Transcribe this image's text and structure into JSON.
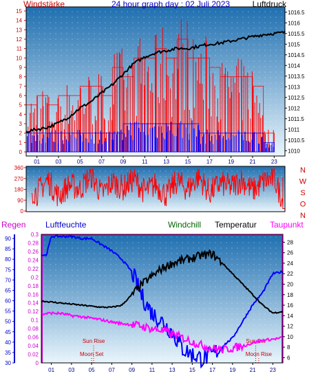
{
  "colors": {
    "wind": "#ff0000",
    "gust_bar": "#ff0000",
    "wind_bar": "#0000ff",
    "pressure": "#000000",
    "direction": "#ff0000",
    "rain": "#cc00cc",
    "humidity": "#0000ff",
    "windchill": "#006600",
    "temperature": "#000000",
    "dewpoint": "#ff00ff",
    "sun_label": "#cc0000",
    "moon_label": "#990000",
    "header_title": "#0000cc",
    "panel_top": "#1f72b4",
    "panel_bottom": "#e8f4fb"
  },
  "chart_data": [
    {
      "type": "bar+line",
      "title": "24 hour graph day : 02 Juli 2023",
      "left_label": "Windstärke",
      "right_label": "Luftdruck",
      "x_ticks": [
        "01",
        "03",
        "05",
        "07",
        "09",
        "11",
        "13",
        "15",
        "17",
        "19",
        "21",
        "23"
      ],
      "x_range": [
        0,
        24
      ],
      "y_left_ticks": [
        "0",
        "1",
        "2",
        "3",
        "4",
        "5",
        "6",
        "7",
        "8",
        "9",
        "10",
        "11",
        "12",
        "13",
        "14",
        "15"
      ],
      "y_left_range": [
        0,
        15
      ],
      "y_right_ticks": [
        "1010",
        "1010.5",
        "1011",
        "1011.5",
        "1012",
        "1012.5",
        "1013",
        "1013.5",
        "1014",
        "1014.5",
        "1015",
        "1015.5",
        "1016",
        "1016.5"
      ],
      "y_right_range": [
        1009.75,
        1016.75
      ],
      "pressure_series": {
        "x": [
          0.0,
          1.0,
          2.0,
          3.0,
          4.0,
          5.0,
          6.0,
          7.0,
          8.0,
          9.0,
          10.0,
          11.0,
          12.0,
          13.0,
          14.0,
          15.0,
          16.0,
          17.0,
          18.0,
          19.0,
          20.0,
          21.0,
          22.0,
          23.0,
          24.0
        ],
        "values": [
          1010.9,
          1011.0,
          1011.1,
          1011.3,
          1011.6,
          1012.0,
          1012.3,
          1012.7,
          1013.1,
          1013.6,
          1014.1,
          1014.4,
          1014.6,
          1014.7,
          1014.8,
          1014.8,
          1014.9,
          1015.0,
          1015.05,
          1015.15,
          1015.25,
          1015.35,
          1015.45,
          1015.5,
          1015.55
        ]
      },
      "gust_bars": {
        "x": [
          0.0,
          1.0,
          2.0,
          3.0,
          4.0,
          5.0,
          6.0,
          7.0,
          8.0,
          9.0,
          10.0,
          11.0,
          12.0,
          13.0,
          14.0,
          15.0,
          16.0,
          17.0,
          18.0,
          19.0,
          20.0,
          21.0,
          22.0,
          23.0
        ],
        "values": [
          5,
          6,
          5,
          6,
          6,
          7,
          7,
          6,
          9,
          8,
          10,
          10,
          11,
          10,
          12,
          10,
          10,
          9,
          8,
          8,
          8,
          7,
          2,
          0
        ]
      },
      "wind_bars": {
        "x": [
          0.0,
          1.0,
          2.0,
          3.0,
          4.0,
          5.0,
          6.0,
          7.0,
          8.0,
          9.0,
          10.0,
          11.0,
          12.0,
          13.0,
          14.0,
          15.0,
          16.0,
          17.0,
          18.0,
          19.0,
          20.0,
          21.0,
          22.0,
          23.0
        ],
        "values": [
          2,
          2,
          2,
          2,
          2,
          2,
          2,
          2,
          2,
          3,
          3,
          3,
          3,
          3,
          3,
          3,
          2,
          2,
          2,
          2,
          2,
          2,
          1,
          0
        ]
      }
    },
    {
      "type": "line",
      "right_labels": [
        "N",
        "W",
        "S",
        "O",
        "N"
      ],
      "y_ticks": [
        "0",
        "90",
        "180",
        "270",
        "360"
      ],
      "y_range": [
        0,
        360
      ],
      "x_range": [
        0,
        24
      ],
      "direction_series": {
        "x": [
          0.0,
          1.0,
          2.0,
          3.0,
          4.0,
          5.0,
          6.0,
          7.0,
          8.0,
          9.0,
          10.0,
          11.0,
          12.0,
          13.0,
          14.0,
          15.0,
          16.0,
          17.0,
          18.0,
          19.0,
          20.0,
          21.0,
          22.0,
          23.0,
          24.0
        ],
        "values": [
          200,
          150,
          260,
          120,
          220,
          180,
          300,
          140,
          240,
          190,
          270,
          160,
          220,
          130,
          250,
          180,
          290,
          150,
          230,
          200,
          260,
          170,
          240,
          280,
          20
        ]
      }
    },
    {
      "type": "line",
      "labels": {
        "rain": "Regen",
        "humidity": "Luftfeuchte",
        "windchill": "Windchill",
        "temperature": "Temperatur",
        "dewpoint": "Taupunkt"
      },
      "x_ticks": [
        "01",
        "03",
        "05",
        "07",
        "09",
        "11",
        "13",
        "15",
        "17",
        "19",
        "21",
        "23"
      ],
      "x_range": [
        0,
        24
      ],
      "humidity_ticks": [
        "30",
        "35",
        "40",
        "45",
        "50",
        "55",
        "60",
        "65",
        "70",
        "75",
        "80",
        "85",
        "90"
      ],
      "humidity_range": [
        30,
        92
      ],
      "rain_ticks": [
        "0",
        "0.02",
        "0.04",
        "0.06",
        "0.08",
        "0.1",
        "0.12",
        "0.14",
        "0.16",
        "0.18",
        "0.2",
        "0.22",
        "0.24",
        "0.26",
        "0.28",
        "0.3"
      ],
      "rain_range": [
        0,
        0.3
      ],
      "temp_ticks": [
        "6",
        "8",
        "10",
        "12",
        "14",
        "16",
        "18",
        "20",
        "22",
        "24",
        "26",
        "28"
      ],
      "temp_range": [
        5,
        29.5
      ],
      "events": [
        {
          "label": "Moon Set",
          "x": 5.0,
          "row": "low"
        },
        {
          "label": "Sun Rise",
          "x": 5.2,
          "row": "high"
        },
        {
          "label": "Sun Set",
          "x": 21.3,
          "row": "high"
        },
        {
          "label": "Moon Rise",
          "x": 21.6,
          "row": "low"
        }
      ],
      "humidity_series": {
        "x": [
          0.0,
          0.5,
          1.0,
          2.0,
          3.0,
          4.0,
          5.0,
          6.0,
          7.0,
          8.0,
          9.0,
          10.0,
          11.0,
          12.0,
          13.0,
          14.0,
          15.0,
          16.0,
          17.0,
          18.0,
          19.0,
          20.0,
          21.0,
          22.0,
          23.0,
          24.0
        ],
        "values": [
          82,
          82,
          91,
          91,
          91,
          90,
          90,
          87,
          84,
          80,
          74,
          62,
          54,
          50,
          45,
          37,
          34,
          32,
          34,
          38,
          42,
          50,
          58,
          64,
          73,
          74
        ]
      },
      "temperature_series": {
        "x": [
          0.0,
          1.0,
          2.0,
          3.0,
          4.0,
          5.0,
          6.0,
          7.0,
          8.0,
          9.0,
          10.0,
          11.0,
          12.0,
          13.0,
          14.0,
          15.0,
          16.0,
          17.0,
          18.0,
          19.0,
          20.0,
          21.0,
          22.0,
          23.0,
          24.0
        ],
        "values": [
          16.8,
          16.6,
          16.4,
          16.2,
          16.0,
          15.8,
          15.6,
          15.6,
          16.0,
          18.0,
          20.0,
          21.5,
          23.0,
          24.0,
          24.5,
          25.0,
          25.5,
          25.8,
          24.0,
          22.0,
          20.0,
          18.0,
          16.0,
          14.5,
          14.8
        ]
      },
      "dewpoint_series": {
        "x": [
          0.0,
          1.0,
          2.0,
          3.0,
          4.0,
          5.0,
          6.0,
          7.0,
          8.0,
          9.0,
          10.0,
          11.0,
          12.0,
          13.0,
          14.0,
          15.0,
          16.0,
          17.0,
          18.0,
          19.0,
          20.0,
          21.0,
          22.0,
          23.0,
          24.0
        ],
        "values": [
          14.3,
          14.5,
          14.4,
          14.0,
          13.8,
          13.5,
          13.2,
          12.8,
          12.5,
          12.3,
          12.0,
          11.5,
          11.2,
          10.5,
          9.8,
          9.0,
          8.3,
          7.8,
          7.5,
          7.8,
          8.2,
          8.8,
          9.3,
          9.5,
          9.8
        ]
      }
    }
  ]
}
